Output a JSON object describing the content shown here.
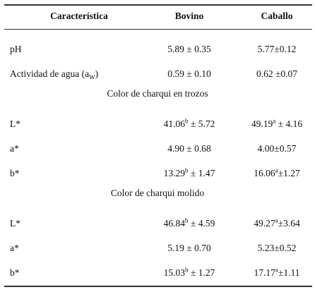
{
  "header": {
    "columns": [
      "Característica",
      "Bovino",
      "Caballo"
    ]
  },
  "table": {
    "rows": [
      {
        "label": "pH",
        "cells": [
          "5.89 ± 0.35",
          "5.77±0.12"
        ]
      },
      {
        "label": {
          "text": "Actividad de agua (a",
          "sub": "W",
          "after": ")"
        },
        "cells": [
          "0.59 ± 0.10",
          "0.62 ±0.07"
        ]
      },
      {
        "section": "Color de charqui en trozos"
      },
      {
        "label": "L*",
        "cells": [
          {
            "text": "41.06",
            "sup": "b",
            "after": " ± 5.72"
          },
          {
            "text": "49.19",
            "sup": "a",
            "after": " ± 4.16"
          }
        ]
      },
      {
        "label": "a*",
        "cells": [
          "4.90 ± 0.68",
          "4.00±0.57"
        ]
      },
      {
        "label": "b*",
        "cells": [
          {
            "text": "13.29",
            "sup": "b",
            "after": " ± 1.47"
          },
          {
            "text": "16.06",
            "sup": "a",
            "after": "±1.27"
          }
        ]
      },
      {
        "section": "Color de charqui molido"
      },
      {
        "label": "L*",
        "cells": [
          {
            "text": "46.84",
            "sup": "b",
            "after": " ± 4.59"
          },
          {
            "text": "49.27",
            "sup": "a",
            "after": "±3.64"
          }
        ]
      },
      {
        "label": "a*",
        "cells": [
          "5.19 ± 0.70",
          "5.23±0.52"
        ]
      },
      {
        "label": "b*",
        "cells": [
          {
            "text": "15.03",
            "sup": "b",
            "after": " ± 1.27"
          },
          {
            "text": "17.17",
            "sup": "a",
            "after": "±1.11"
          }
        ]
      }
    ]
  }
}
